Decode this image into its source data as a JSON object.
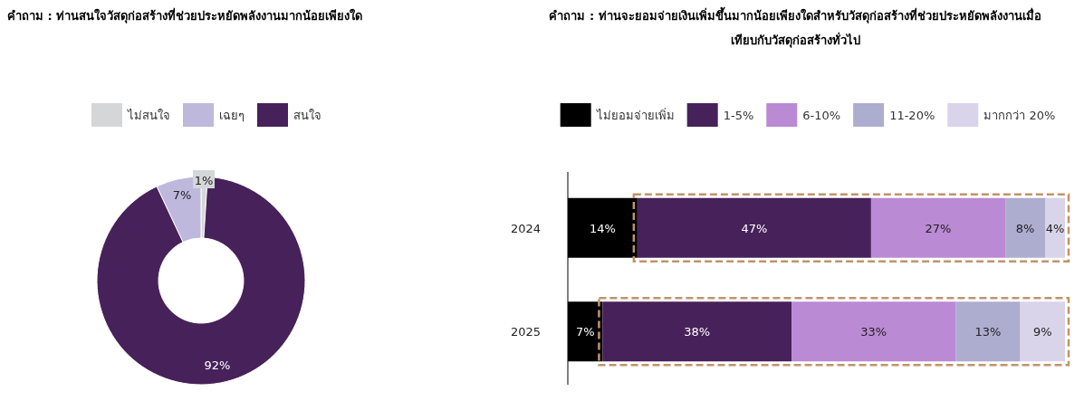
{
  "chart_data": [
    {
      "type": "donut",
      "title": "คำถาม : ท่านสนใจวัสดุก่อสร้างที่ช่วยประหยัดพลังงานมากน้อยเพียงใด",
      "categories": [
        "ไม่สนใจ",
        "เฉยๆ",
        "สนใจ"
      ],
      "values": [
        1,
        7,
        92
      ],
      "value_labels": [
        "1%",
        "7%",
        "92%"
      ],
      "colors": [
        "#d5d6d8",
        "#beb8dc",
        "#47215a"
      ],
      "legend": "top"
    },
    {
      "type": "bar",
      "orientation": "horizontal",
      "stacked": true,
      "title": "คำถาม : ท่านจะยอมจ่ายเงินเพิ่มขึ้นมากน้อยเพียงใดสำหรับวัสดุก่อสร้างที่ช่วยประหยัดพลังงานเมื่อเทียบกับวัสดุก่อสร้างทั่วไป",
      "categories": [
        "2024",
        "2025"
      ],
      "legend": "top",
      "tick_labels": "y",
      "series": [
        {
          "name": "ไม่ยอมจ่ายเพิ่ม",
          "color": "#000000",
          "values": [
            14,
            7
          ],
          "value_labels": [
            "14%",
            "7%"
          ]
        },
        {
          "name": "1-5%",
          "color": "#47215a",
          "values": [
            47,
            38
          ],
          "value_labels": [
            "47%",
            "38%"
          ]
        },
        {
          "name": "6-10%",
          "color": "#bb8ad4",
          "values": [
            27,
            33
          ],
          "value_labels": [
            "27%",
            "33%"
          ]
        },
        {
          "name": "11-20%",
          "color": "#adadd0",
          "values": [
            8,
            13
          ],
          "value_labels": [
            "8%",
            "13%"
          ]
        },
        {
          "name": "มากกว่า 20%",
          "color": "#d9d4ea",
          "values": [
            4,
            9
          ],
          "value_labels": [
            "4%",
            "9%"
          ]
        }
      ]
    }
  ]
}
